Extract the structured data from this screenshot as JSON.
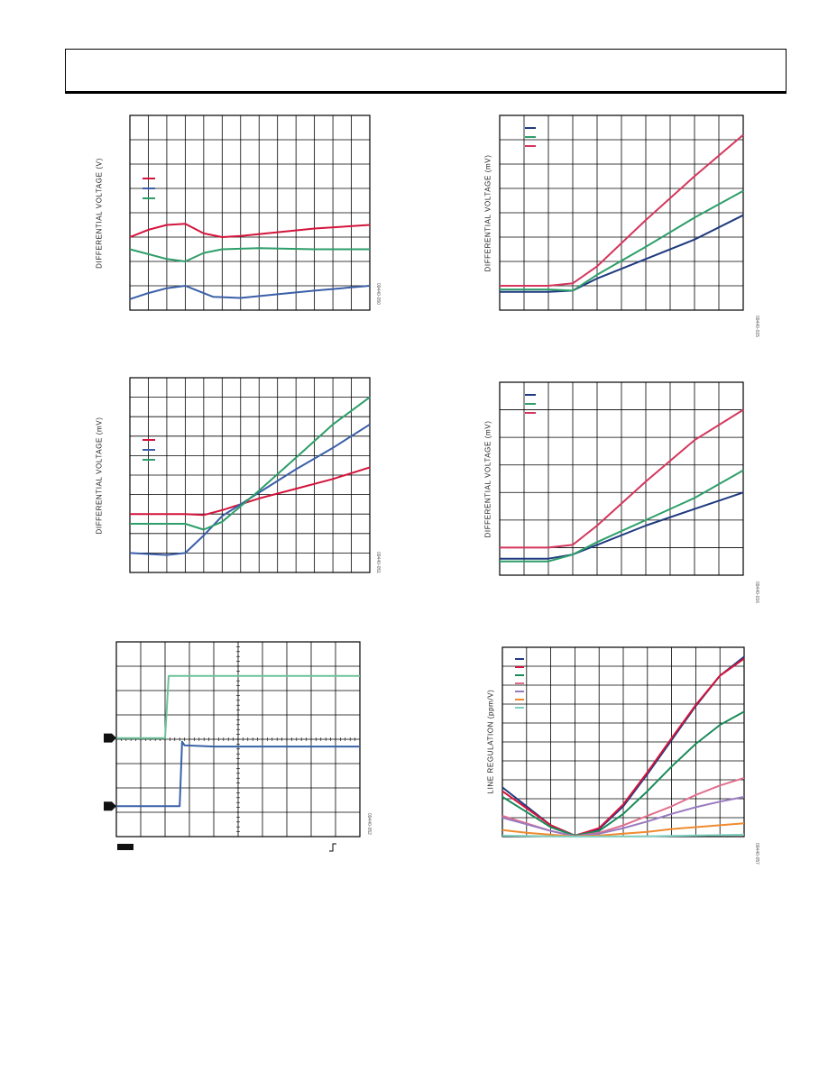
{
  "chart_data": [
    {
      "type": "line",
      "ylabel": "DIFFERENTIAL VOLTAGE (V)",
      "figure_id": "09440-050",
      "grid": true,
      "legend": "left-middle",
      "xlim": [
        0,
        13
      ],
      "ylim": [
        0,
        8
      ],
      "series": [
        {
          "color": "#d4143c",
          "points": [
            [
              0,
              3.0
            ],
            [
              1,
              3.3
            ],
            [
              2,
              3.5
            ],
            [
              3,
              3.55
            ],
            [
              4,
              3.15
            ],
            [
              5,
              3.0
            ],
            [
              6,
              3.05
            ],
            [
              8,
              3.2
            ],
            [
              10,
              3.35
            ],
            [
              13,
              3.5
            ]
          ]
        },
        {
          "color": "#3a5fa8",
          "points": [
            [
              0,
              0.45
            ],
            [
              1,
              0.7
            ],
            [
              2,
              0.9
            ],
            [
              3,
              1.0
            ],
            [
              3.5,
              0.85
            ],
            [
              4.5,
              0.55
            ],
            [
              6,
              0.5
            ],
            [
              8,
              0.65
            ],
            [
              10,
              0.8
            ],
            [
              13,
              1.0
            ]
          ]
        },
        {
          "color": "#2e9e6a",
          "points": [
            [
              0,
              2.5
            ],
            [
              1,
              2.3
            ],
            [
              2,
              2.1
            ],
            [
              3,
              2.0
            ],
            [
              4,
              2.35
            ],
            [
              5,
              2.5
            ],
            [
              7,
              2.55
            ],
            [
              10,
              2.5
            ],
            [
              13,
              2.5
            ]
          ]
        }
      ]
    },
    {
      "type": "line",
      "ylabel": "DIFFERENTIAL VOLTAGE (mV)",
      "figure_id": "09440-051",
      "grid": true,
      "legend": "left-middle",
      "xlim": [
        0,
        13
      ],
      "ylim": [
        0,
        10
      ],
      "series": [
        {
          "color": "#d4143c",
          "points": [
            [
              0,
              3.0
            ],
            [
              3,
              3.0
            ],
            [
              4,
              2.95
            ],
            [
              5,
              3.2
            ],
            [
              7,
              3.8
            ],
            [
              9,
              4.3
            ],
            [
              11,
              4.8
            ],
            [
              13,
              5.4
            ]
          ]
        },
        {
          "color": "#3a5fa8",
          "points": [
            [
              0,
              1.0
            ],
            [
              2,
              0.9
            ],
            [
              3,
              1.0
            ],
            [
              4,
              1.9
            ],
            [
              5,
              2.9
            ],
            [
              7,
              4.1
            ],
            [
              9,
              5.3
            ],
            [
              11,
              6.4
            ],
            [
              13,
              7.6
            ]
          ]
        },
        {
          "color": "#2e9e6a",
          "points": [
            [
              0,
              2.5
            ],
            [
              3,
              2.5
            ],
            [
              4,
              2.2
            ],
            [
              5,
              2.6
            ],
            [
              7,
              4.2
            ],
            [
              9,
              5.9
            ],
            [
              11,
              7.6
            ],
            [
              13,
              9.0
            ]
          ]
        }
      ]
    },
    {
      "type": "line",
      "ylabel": "",
      "figure_id": "09440-052",
      "grid": true,
      "legend": "none",
      "xlim": [
        0,
        10
      ],
      "ylim": [
        0,
        8
      ],
      "series": [
        {
          "color": "#6cc29a",
          "points": [
            [
              0,
              4.05
            ],
            [
              2.0,
              4.05
            ],
            [
              2.15,
              6.6
            ],
            [
              4,
              6.6
            ],
            [
              6,
              6.6
            ],
            [
              8,
              6.6
            ],
            [
              10,
              6.6
            ]
          ]
        },
        {
          "color": "#3a62a8",
          "points": [
            [
              0,
              1.25
            ],
            [
              2.6,
              1.25
            ],
            [
              2.7,
              3.9
            ],
            [
              2.8,
              3.75
            ],
            [
              4,
              3.7
            ],
            [
              6,
              3.7
            ],
            [
              8,
              3.7
            ],
            [
              10,
              3.7
            ]
          ]
        }
      ]
    },
    {
      "type": "line",
      "ylabel": "DIFFERENTIAL VOLTAGE (mV)",
      "figure_id": "09440-015",
      "grid": true,
      "legend": "top-left",
      "xlim": [
        0,
        10
      ],
      "ylim": [
        0,
        8
      ],
      "series": [
        {
          "color": "#1f3a80",
          "points": [
            [
              0,
              0.75
            ],
            [
              2,
              0.75
            ],
            [
              3,
              0.8
            ],
            [
              4,
              1.3
            ],
            [
              6,
              2.1
            ],
            [
              8,
              2.9
            ],
            [
              10,
              3.9
            ]
          ]
        },
        {
          "color": "#2e9e6a",
          "points": [
            [
              0,
              0.85
            ],
            [
              2,
              0.85
            ],
            [
              3,
              0.8
            ],
            [
              4,
              1.45
            ],
            [
              6,
              2.6
            ],
            [
              8,
              3.8
            ],
            [
              10,
              4.9
            ]
          ]
        },
        {
          "color": "#d4365c",
          "points": [
            [
              0,
              1.0
            ],
            [
              2,
              1.0
            ],
            [
              3,
              1.1
            ],
            [
              4,
              1.8
            ],
            [
              6,
              3.7
            ],
            [
              8,
              5.5
            ],
            [
              10,
              7.2
            ]
          ]
        }
      ]
    },
    {
      "type": "line",
      "ylabel": "DIFFERENTIAL VOLTAGE (mV)",
      "figure_id": "09440-016",
      "grid": true,
      "legend": "top-left",
      "xlim": [
        0,
        10
      ],
      "ylim": [
        0,
        7
      ],
      "series": [
        {
          "color": "#1f3a80",
          "points": [
            [
              0,
              0.6
            ],
            [
              2,
              0.6
            ],
            [
              3,
              0.75
            ],
            [
              4,
              1.1
            ],
            [
              6,
              1.8
            ],
            [
              8,
              2.4
            ],
            [
              10,
              3.0
            ]
          ]
        },
        {
          "color": "#2e9e6a",
          "points": [
            [
              0,
              0.5
            ],
            [
              2,
              0.5
            ],
            [
              3,
              0.75
            ],
            [
              4,
              1.2
            ],
            [
              6,
              2.0
            ],
            [
              8,
              2.8
            ],
            [
              10,
              3.8
            ]
          ]
        },
        {
          "color": "#d4365c",
          "points": [
            [
              0,
              1.0
            ],
            [
              2,
              1.0
            ],
            [
              3,
              1.1
            ],
            [
              4,
              1.8
            ],
            [
              6,
              3.4
            ],
            [
              8,
              4.9
            ],
            [
              10,
              6.0
            ]
          ]
        }
      ]
    },
    {
      "type": "line",
      "ylabel": "LINE REGULATION (ppm/V)",
      "figure_id": "09440-057",
      "grid": true,
      "legend": "top-left",
      "xlim": [
        0,
        10
      ],
      "ylim": [
        0,
        10
      ],
      "series": [
        {
          "color": "#1f3a80",
          "points": [
            [
              0,
              2.6
            ],
            [
              1,
              1.6
            ],
            [
              2,
              0.6
            ],
            [
              3,
              0.05
            ],
            [
              4,
              0.4
            ],
            [
              5,
              1.6
            ],
            [
              6,
              3.3
            ],
            [
              7,
              5.1
            ],
            [
              8,
              6.9
            ],
            [
              9,
              8.5
            ],
            [
              10,
              9.5
            ]
          ]
        },
        {
          "color": "#d4143c",
          "points": [
            [
              0,
              2.4
            ],
            [
              1,
              1.5
            ],
            [
              2,
              0.6
            ],
            [
              3,
              0.05
            ],
            [
              4,
              0.45
            ],
            [
              5,
              1.7
            ],
            [
              6,
              3.4
            ],
            [
              7,
              5.2
            ],
            [
              8,
              6.95
            ],
            [
              9,
              8.5
            ],
            [
              10,
              9.4
            ]
          ]
        },
        {
          "color": "#1a8a5a",
          "points": [
            [
              0,
              2.1
            ],
            [
              1,
              1.3
            ],
            [
              2,
              0.5
            ],
            [
              3,
              0.05
            ],
            [
              4,
              0.3
            ],
            [
              5,
              1.2
            ],
            [
              6,
              2.4
            ],
            [
              7,
              3.7
            ],
            [
              8,
              4.9
            ],
            [
              9,
              5.9
            ],
            [
              10,
              6.6
            ]
          ]
        },
        {
          "color": "#e0708e",
          "points": [
            [
              0,
              1.1
            ],
            [
              1,
              0.7
            ],
            [
              2,
              0.3
            ],
            [
              3,
              0.02
            ],
            [
              4,
              0.2
            ],
            [
              5,
              0.6
            ],
            [
              6,
              1.1
            ],
            [
              7,
              1.6
            ],
            [
              8,
              2.2
            ],
            [
              9,
              2.7
            ],
            [
              10,
              3.1
            ]
          ]
        },
        {
          "color": "#9a7ac0",
          "points": [
            [
              0,
              1.0
            ],
            [
              1,
              0.65
            ],
            [
              2,
              0.3
            ],
            [
              3,
              0.02
            ],
            [
              4,
              0.15
            ],
            [
              5,
              0.45
            ],
            [
              6,
              0.8
            ],
            [
              7,
              1.2
            ],
            [
              8,
              1.55
            ],
            [
              9,
              1.85
            ],
            [
              10,
              2.1
            ]
          ]
        },
        {
          "color": "#f08a30",
          "points": [
            [
              0,
              0.35
            ],
            [
              1,
              0.2
            ],
            [
              2,
              0.1
            ],
            [
              3,
              0.01
            ],
            [
              4,
              0.05
            ],
            [
              5,
              0.15
            ],
            [
              6,
              0.25
            ],
            [
              7,
              0.4
            ],
            [
              8,
              0.5
            ],
            [
              9,
              0.6
            ],
            [
              10,
              0.7
            ]
          ]
        },
        {
          "color": "#7fd0c0",
          "points": [
            [
              0,
              0.05
            ],
            [
              3,
              0.0
            ],
            [
              6,
              0.02
            ],
            [
              10,
              0.1
            ]
          ]
        }
      ]
    }
  ]
}
